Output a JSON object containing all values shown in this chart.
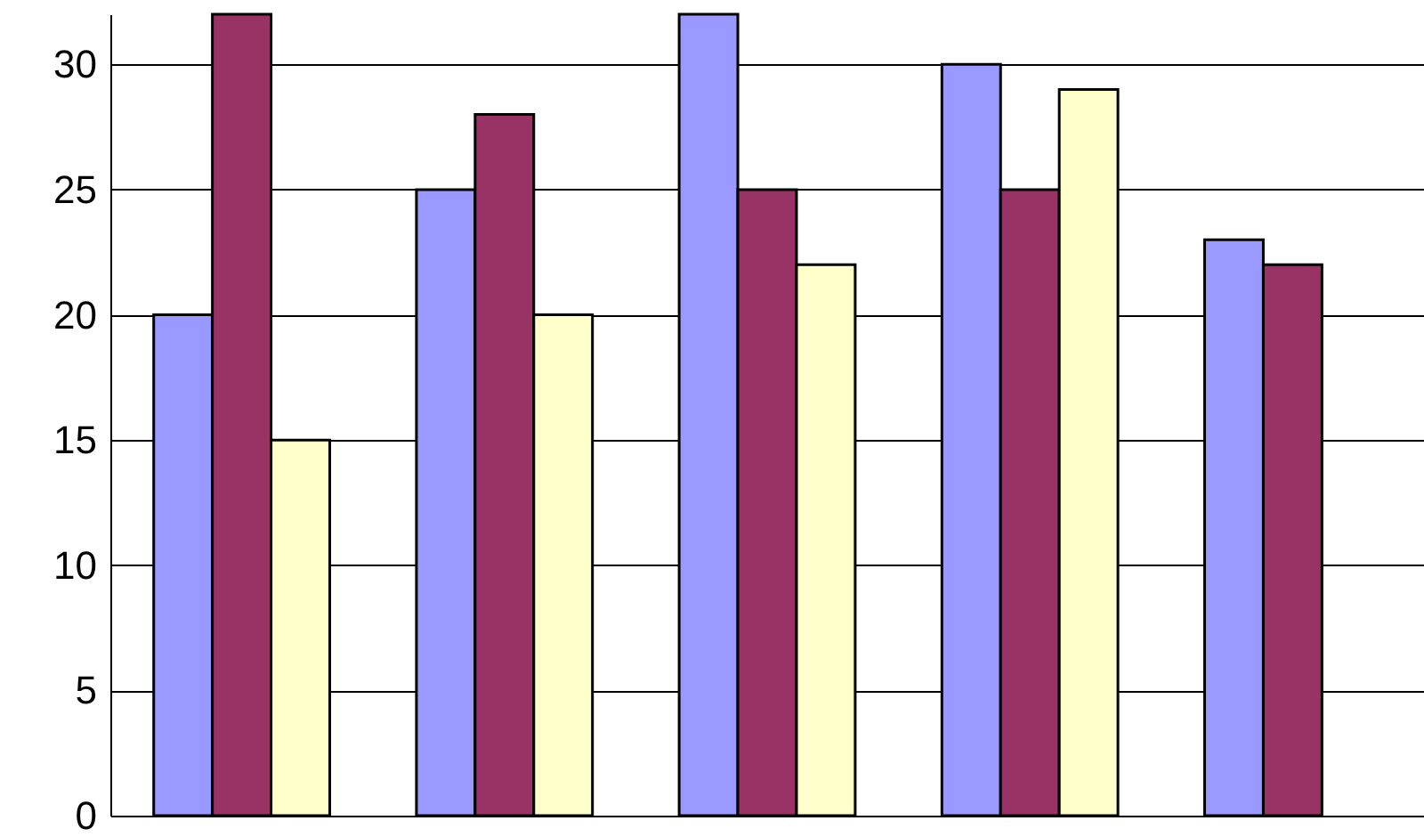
{
  "chart_data": {
    "type": "bar",
    "categories": [
      null,
      null,
      null,
      null,
      null
    ],
    "series": [
      {
        "color": "#9999ff",
        "values": [
          20,
          25,
          32,
          30,
          23
        ]
      },
      {
        "color": "#993366",
        "values": [
          32,
          28,
          25,
          25,
          22
        ]
      },
      {
        "color": "#ffffcc",
        "values": [
          15,
          20,
          22,
          29,
          null
        ]
      }
    ],
    "ylim": [
      0,
      32
    ],
    "yticks": [
      0,
      5,
      10,
      15,
      20,
      25,
      30
    ],
    "grid": "y",
    "tick_labels": "y"
  }
}
